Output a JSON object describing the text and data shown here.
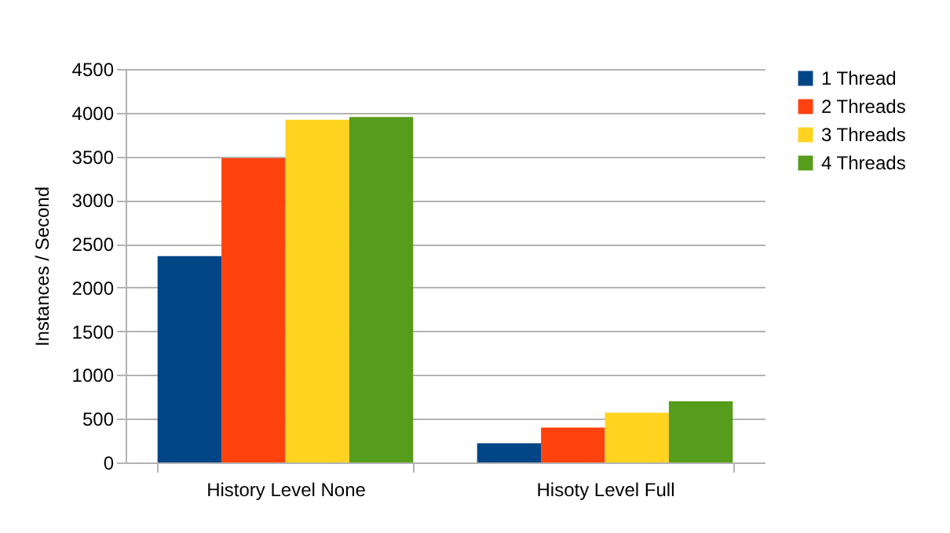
{
  "chart_data": {
    "type": "bar",
    "ylabel": "Instances / Second",
    "categories": [
      "History Level None",
      "Hisoty Level Full"
    ],
    "series": [
      {
        "name": "1 Thread",
        "color": "#004586",
        "values": [
          2360,
          220
        ]
      },
      {
        "name": "2 Threads",
        "color": "#ff420e",
        "values": [
          3480,
          400
        ]
      },
      {
        "name": "3 Threads",
        "color": "#ffd320",
        "values": [
          3920,
          570
        ]
      },
      {
        "name": "4 Threads",
        "color": "#579d1c",
        "values": [
          3950,
          700
        ]
      }
    ],
    "ylim": [
      0,
      4500
    ],
    "yticks": [
      0,
      500,
      1000,
      1500,
      2000,
      2500,
      3000,
      3500,
      4000,
      4500
    ],
    "grid": "y",
    "legend": "right"
  }
}
